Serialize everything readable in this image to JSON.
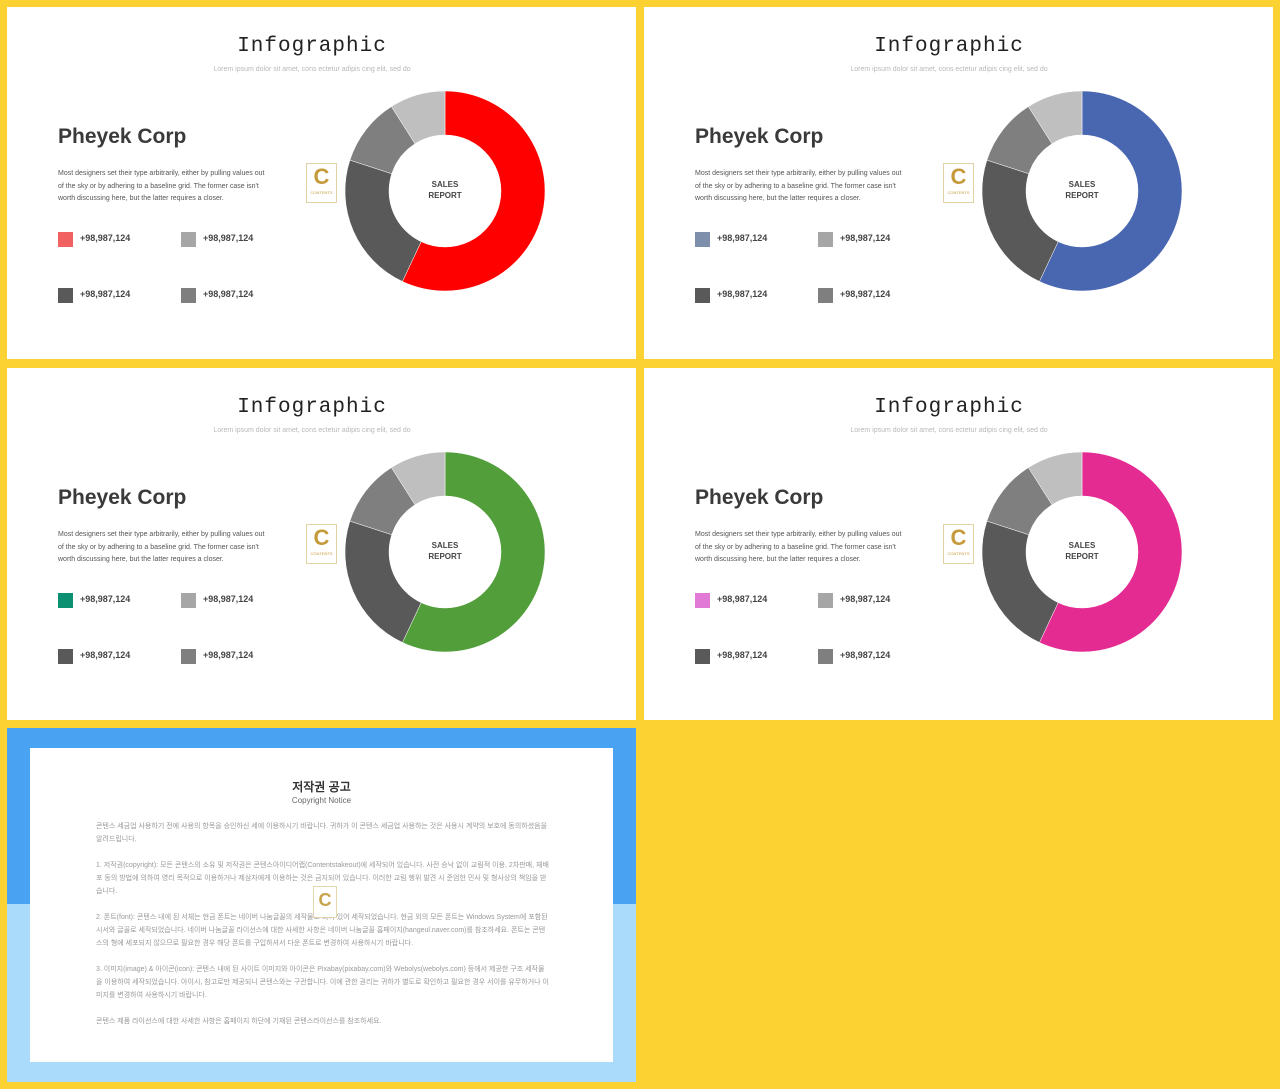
{
  "slides": [
    {
      "title": "Infographic",
      "subtitle": "Lorem ipsum  dolor sit amet, cons ectetur adipis cing elit, sed do",
      "corp": "Pheyek Corp",
      "description": "Most designers set their type arbitrarily, either by pulling values out of the sky or by adhering to a baseline grid. The former case isn't worth discussing here, but the latter requires a closer.",
      "logo_letter": "C",
      "logo_text": "CONTENTS",
      "center_label_1": "SALES",
      "center_label_2": "REPORT",
      "legend": [
        {
          "value": "+98,987,124",
          "color": "#f26161"
        },
        {
          "value": "+98,987,124",
          "color": "#a6a6a6"
        },
        {
          "value": "+98,987,124",
          "color": "#595959"
        },
        {
          "value": "+98,987,124",
          "color": "#7f7f7f"
        }
      ]
    },
    {
      "title": "Infographic",
      "subtitle": "Lorem ipsum  dolor sit amet, cons ectetur adipis cing elit, sed do",
      "corp": "Pheyek Corp",
      "description": "Most designers set their type arbitrarily, either by pulling values out of the sky or by adhering to a baseline grid. The former case isn't worth discussing here, but the latter requires a closer.",
      "logo_letter": "C",
      "logo_text": "CONTENTS",
      "center_label_1": "SALES",
      "center_label_2": "REPORT",
      "legend": [
        {
          "value": "+98,987,124",
          "color": "#7e8fab"
        },
        {
          "value": "+98,987,124",
          "color": "#a6a6a6"
        },
        {
          "value": "+98,987,124",
          "color": "#595959"
        },
        {
          "value": "+98,987,124",
          "color": "#7f7f7f"
        }
      ]
    },
    {
      "title": "Infographic",
      "subtitle": "Lorem ipsum  dolor sit amet, cons ectetur adipis cing elit, sed do",
      "corp": "Pheyek Corp",
      "description": "Most designers set their type arbitrarily, either by pulling values out of the sky or by adhering to a baseline grid. The former case isn't worth discussing here, but the latter requires a closer.",
      "logo_letter": "C",
      "logo_text": "CONTENTS",
      "center_label_1": "SALES",
      "center_label_2": "REPORT",
      "legend": [
        {
          "value": "+98,987,124",
          "color": "#0b9171"
        },
        {
          "value": "+98,987,124",
          "color": "#a6a6a6"
        },
        {
          "value": "+98,987,124",
          "color": "#595959"
        },
        {
          "value": "+98,987,124",
          "color": "#7f7f7f"
        }
      ]
    },
    {
      "title": "Infographic",
      "subtitle": "Lorem ipsum  dolor sit amet, cons ectetur adipis cing elit, sed do",
      "corp": "Pheyek Corp",
      "description": "Most designers set their type arbitrarily, either by pulling values out of the sky or by adhering to a baseline grid. The former case isn't worth discussing here, but the latter requires a closer.",
      "logo_letter": "C",
      "logo_text": "CONTENTS",
      "center_label_1": "SALES",
      "center_label_2": "REPORT",
      "legend": [
        {
          "value": "+98,987,124",
          "color": "#e07ad6"
        },
        {
          "value": "+98,987,124",
          "color": "#a6a6a6"
        },
        {
          "value": "+98,987,124",
          "color": "#595959"
        },
        {
          "value": "+98,987,124",
          "color": "#7f7f7f"
        }
      ]
    }
  ],
  "chart_data": [
    {
      "type": "pie",
      "values": [
        57,
        23,
        11,
        9
      ],
      "colors": [
        "#ff0000",
        "#595959",
        "#7f7f7f",
        "#bfbfbf"
      ]
    },
    {
      "type": "pie",
      "values": [
        57,
        23,
        11,
        9
      ],
      "colors": [
        "#4966b0",
        "#595959",
        "#7f7f7f",
        "#bfbfbf"
      ]
    },
    {
      "type": "pie",
      "values": [
        57,
        23,
        11,
        9
      ],
      "colors": [
        "#529e3a",
        "#595959",
        "#7f7f7f",
        "#bfbfbf"
      ]
    },
    {
      "type": "pie",
      "values": [
        57,
        23,
        11,
        9
      ],
      "colors": [
        "#e42b91",
        "#595959",
        "#7f7f7f",
        "#bfbfbf"
      ]
    }
  ],
  "notice": {
    "title": "저작권 공고",
    "subtitle": "Copyright Notice",
    "logo_letter": "C",
    "paragraphs": [
      "콘텐스 세금업 사용하기 전에 사용의 항목을 승인하신 세에 이용하시기 바랍니다. 귀하가 이 콘텐스 세금업 사용하는 것은 사용시 계약의 보호에 동의하셨음을 알려드립니다.",
      "1. 저작권(copyright): 모든 콘텐스의 소유 및 저작권은 콘텐스아이디어랩(Contentstakeout)에 세작되어 있습니다. 사전 승낙 없이 교림적 이용, 2차판매, 재배포 등의 방법에 의하여 영리 목적으로 이용하거나 제삼자에게 이용하는 것은 금지되어 있습니다. 이러한 교림 행위 발견 시 준엄한 민사 및 형사상의 책임을 받습니다.",
      "2. 폰트(font): 콘텐스 내에 된 서체는 현금 폰트는 네이버 나눔글꼴의 세작물로 되어 있어 세작되었습니다. 현금 외의 모든 폰트는 Windows System에 포함된 시서와 글꼴로 세작되었습니다. 네이버 나눔글꼴 라이선스에 대한 사세한 사항은 네이버 나눔글꼴 홈페이지(hangeul.naver.com)를 참조하세요. 폰트는 콘텐스의 형에 세포되지 않으므로 필요한 경우 해당 폰트를 구입하셔서 다운 폰트로 변경하여 사용하시기 바랍니다.",
      "3. 이미지(image) & 아이콘(icon): 콘텐스 내에 된 사이트 이미지와 아이콘은 Pixabay(pixabay.com)와 Webolys(webolys.com) 등에서 제공한 구조 세작물을 이용하여 세작되었습니다. 아이시, 참고로만 제공되니 콘텐스와는 구관합니다. 이에 관한 권리는 귀하가 별도로 확인하고 필요한 경우 서이를 유무하거나 이미지를 변경하여 사용하시기 바랍니다.",
      "콘텐스 제품 라이선스에 대한 사세한 사항은 홈페이지 하단에 기재된 콘텐스라이선스를 참조하세요."
    ]
  }
}
